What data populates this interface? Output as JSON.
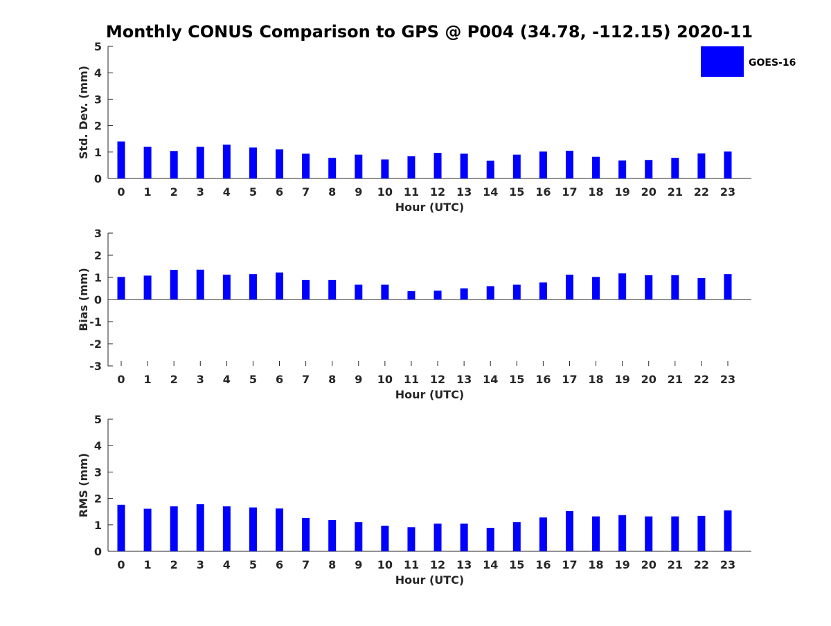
{
  "title": "Monthly CONUS Comparison to GPS @ P004 (34.78, -112.15) 2020-11",
  "legend": {
    "label": "GOES-16",
    "color": "#0000ff"
  },
  "chart_data": [
    {
      "type": "bar",
      "ylabel": "Std. Dev. (mm)",
      "xlabel": "Hour (UTC)",
      "ylim": [
        0,
        5
      ],
      "yticks": [
        "0",
        "1",
        "2",
        "3",
        "4",
        "5"
      ],
      "categories": [
        "0",
        "1",
        "2",
        "3",
        "4",
        "5",
        "6",
        "7",
        "8",
        "9",
        "10",
        "11",
        "12",
        "13",
        "14",
        "15",
        "16",
        "17",
        "18",
        "19",
        "20",
        "21",
        "22",
        "23"
      ],
      "series": [
        {
          "name": "GOES-16",
          "color": "#0000ff",
          "values": [
            1.4,
            1.2,
            1.04,
            1.2,
            1.28,
            1.17,
            1.1,
            0.94,
            0.78,
            0.9,
            0.72,
            0.84,
            0.97,
            0.94,
            0.67,
            0.9,
            1.02,
            1.05,
            0.82,
            0.68,
            0.7,
            0.78,
            0.95,
            1.02
          ]
        }
      ]
    },
    {
      "type": "bar",
      "ylabel": "Bias (mm)",
      "xlabel": "Hour (UTC)",
      "ylim": [
        -3,
        3
      ],
      "yticks": [
        "-3",
        "-2",
        "-1",
        "0",
        "1",
        "2",
        "3"
      ],
      "categories": [
        "0",
        "1",
        "2",
        "3",
        "4",
        "5",
        "6",
        "7",
        "8",
        "9",
        "10",
        "11",
        "12",
        "13",
        "14",
        "15",
        "16",
        "17",
        "18",
        "19",
        "20",
        "21",
        "22",
        "23"
      ],
      "series": [
        {
          "name": "GOES-16",
          "color": "#0000ff",
          "values": [
            1.02,
            1.08,
            1.34,
            1.35,
            1.12,
            1.15,
            1.22,
            0.88,
            0.88,
            0.67,
            0.67,
            0.38,
            0.4,
            0.5,
            0.6,
            0.67,
            0.77,
            1.12,
            1.02,
            1.18,
            1.1,
            1.1,
            0.97,
            1.15
          ]
        }
      ]
    },
    {
      "type": "bar",
      "ylabel": "RMS (mm)",
      "xlabel": "Hour (UTC)",
      "ylim": [
        0,
        5
      ],
      "yticks": [
        "0",
        "1",
        "2",
        "3",
        "4",
        "5"
      ],
      "categories": [
        "0",
        "1",
        "2",
        "3",
        "4",
        "5",
        "6",
        "7",
        "8",
        "9",
        "10",
        "11",
        "12",
        "13",
        "14",
        "15",
        "16",
        "17",
        "18",
        "19",
        "20",
        "21",
        "22",
        "23"
      ],
      "series": [
        {
          "name": "GOES-16",
          "color": "#0000ff",
          "values": [
            1.76,
            1.61,
            1.7,
            1.78,
            1.7,
            1.66,
            1.62,
            1.26,
            1.18,
            1.1,
            0.97,
            0.91,
            1.05,
            1.05,
            0.89,
            1.1,
            1.28,
            1.52,
            1.32,
            1.37,
            1.32,
            1.32,
            1.34,
            1.55
          ]
        }
      ]
    }
  ]
}
